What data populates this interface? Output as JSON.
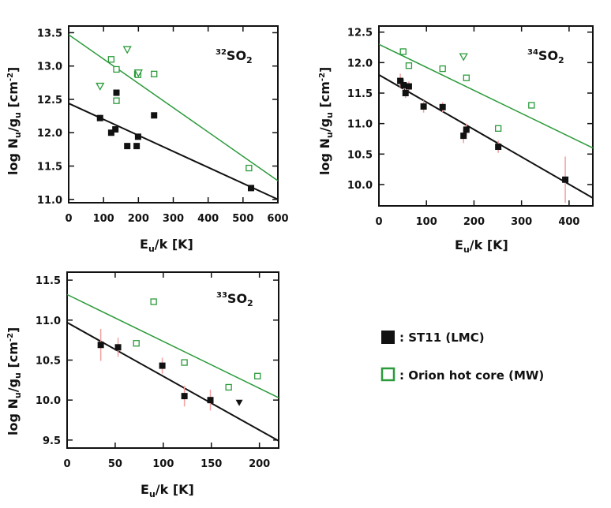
{
  "colors": {
    "lmc": "#111111",
    "mw": "#2a9a3a",
    "errorbar": "#f2a0a0",
    "axes": "#111111"
  },
  "legend": {
    "lmc_label": ": ST11 (LMC)",
    "mw_label": ": Orion hot core (MW)"
  },
  "chart_data": [
    {
      "type": "scatter",
      "title": "",
      "panel_label": {
        "sup": "32",
        "main": "SO",
        "sub": "2"
      },
      "xlabel": {
        "main": "E",
        "sub": "u",
        "rest": "/k [K]"
      },
      "ylabel": {
        "main": "log N",
        "sub1": "u",
        "mid": "/g",
        "sub2": "u",
        "rest": " [cm",
        "sup": "-2",
        "end": "]"
      },
      "xlim": [
        0,
        600
      ],
      "ylim": [
        10.95,
        13.6
      ],
      "xticks": [
        0,
        100,
        200,
        300,
        400,
        500,
        600
      ],
      "yticks": [
        11.0,
        11.5,
        12.0,
        12.5,
        13.0,
        13.5
      ],
      "ytick_labels": [
        "11.0",
        "11.5",
        "12.0",
        "12.5",
        "13.0",
        "13.5"
      ],
      "series": [
        {
          "name": "ST11 (LMC)",
          "marker": "filled-square",
          "color": "#111111",
          "x": [
            90,
            122,
            134,
            137,
            168,
            195,
            199,
            245,
            523
          ],
          "y": [
            12.22,
            12.0,
            12.05,
            12.6,
            11.8,
            11.8,
            11.94,
            12.26,
            11.17
          ],
          "yerr": [
            0,
            0,
            0,
            0,
            0,
            0,
            0,
            0,
            0
          ]
        },
        {
          "name": "Orion hot core (MW)",
          "marker": "open-square",
          "color": "#2a9a3a",
          "x": [
            122,
            137,
            137,
            197,
            199,
            245,
            517
          ],
          "y": [
            13.1,
            12.95,
            12.48,
            12.88,
            12.87,
            12.88,
            11.47
          ]
        },
        {
          "name": "Orion hot core (MW) upper limits",
          "marker": "open-triangle-down",
          "color": "#2a9a3a",
          "x": [
            90,
            168,
            200
          ],
          "y": [
            12.7,
            13.25,
            12.9
          ]
        }
      ],
      "fits": [
        {
          "name": "LMC fit",
          "color": "#111111",
          "x": [
            0,
            600
          ],
          "y": [
            12.44,
            11.0
          ]
        },
        {
          "name": "MW fit",
          "color": "#2a9a3a",
          "x": [
            0,
            600
          ],
          "y": [
            13.47,
            11.28
          ]
        }
      ]
    },
    {
      "type": "scatter",
      "title": "",
      "panel_label": {
        "sup": "34",
        "main": "SO",
        "sub": "2"
      },
      "xlabel": {
        "main": "E",
        "sub": "u",
        "rest": "/k [K]"
      },
      "ylabel": {
        "main": "log N",
        "sub1": "u",
        "mid": "/g",
        "sub2": "u",
        "rest": " [cm",
        "sup": "-2",
        "end": "]"
      },
      "xlim": [
        0,
        450
      ],
      "ylim": [
        9.65,
        12.6
      ],
      "xticks": [
        0,
        100,
        200,
        300,
        400
      ],
      "yticks": [
        10.0,
        10.5,
        11.0,
        11.5,
        12.0,
        12.5
      ],
      "ytick_labels": [
        "10.0",
        "10.5",
        "11.0",
        "11.5",
        "12.0",
        "12.5"
      ],
      "series": [
        {
          "name": "ST11 (LMC)",
          "marker": "filled-square",
          "color": "#111111",
          "x": [
            45,
            52,
            56,
            63,
            94,
            134,
            178,
            184,
            251,
            392
          ],
          "y": [
            11.7,
            11.63,
            11.5,
            11.61,
            11.28,
            11.27,
            10.8,
            10.9,
            10.62,
            10.08
          ],
          "yerr": [
            0.12,
            0.1,
            0.08,
            0.08,
            0.1,
            0.08,
            0.12,
            0.1,
            0.1,
            0.38
          ]
        },
        {
          "name": "Orion hot core (MW)",
          "marker": "open-square",
          "color": "#2a9a3a",
          "x": [
            51,
            63,
            134,
            184,
            251,
            321
          ],
          "y": [
            12.18,
            11.95,
            11.9,
            11.75,
            10.92,
            11.3
          ]
        },
        {
          "name": "Orion hot core (MW) upper limits",
          "marker": "open-triangle-down",
          "color": "#2a9a3a",
          "x": [
            178
          ],
          "y": [
            12.1
          ]
        }
      ],
      "fits": [
        {
          "name": "LMC fit",
          "color": "#111111",
          "x": [
            0,
            450
          ],
          "y": [
            11.8,
            9.78
          ]
        },
        {
          "name": "MW fit",
          "color": "#2a9a3a",
          "x": [
            0,
            450
          ],
          "y": [
            12.3,
            10.6
          ]
        }
      ]
    },
    {
      "type": "scatter",
      "title": "",
      "panel_label": {
        "sup": "33",
        "main": "SO",
        "sub": "2"
      },
      "xlabel": {
        "main": "E",
        "sub": "u",
        "rest": "/k [K]"
      },
      "ylabel": {
        "main": "log N",
        "sub1": "u",
        "mid": "/g",
        "sub2": "u",
        "rest": " [cm",
        "sup": "-2",
        "end": "]"
      },
      "xlim": [
        0,
        220
      ],
      "ylim": [
        9.4,
        11.6
      ],
      "xticks": [
        0,
        50,
        100,
        150,
        200
      ],
      "yticks": [
        9.5,
        10.0,
        10.5,
        11.0,
        11.5
      ],
      "ytick_labels": [
        "9.5",
        "10.0",
        "10.5",
        "11.0",
        "11.5"
      ],
      "series": [
        {
          "name": "ST11 (LMC)",
          "marker": "filled-square",
          "color": "#111111",
          "x": [
            35,
            53,
            99,
            122,
            149
          ],
          "y": [
            10.69,
            10.66,
            10.43,
            10.05,
            10.0
          ],
          "yerr": [
            0.2,
            0.12,
            0.1,
            0.13,
            0.13
          ]
        },
        {
          "name": "ST11 (LMC) upper limits",
          "marker": "filled-triangle-down",
          "color": "#111111",
          "x": [
            179
          ],
          "y": [
            9.97
          ]
        },
        {
          "name": "Orion hot core (MW)",
          "marker": "open-square",
          "color": "#2a9a3a",
          "x": [
            72,
            90,
            122,
            168,
            198
          ],
          "y": [
            10.71,
            11.23,
            10.47,
            10.16,
            10.3
          ]
        }
      ],
      "fits": [
        {
          "name": "LMC fit",
          "color": "#111111",
          "x": [
            0,
            220
          ],
          "y": [
            10.97,
            9.49
          ]
        },
        {
          "name": "MW fit",
          "color": "#2a9a3a",
          "x": [
            0,
            220
          ],
          "y": [
            11.32,
            10.03
          ]
        }
      ]
    }
  ]
}
